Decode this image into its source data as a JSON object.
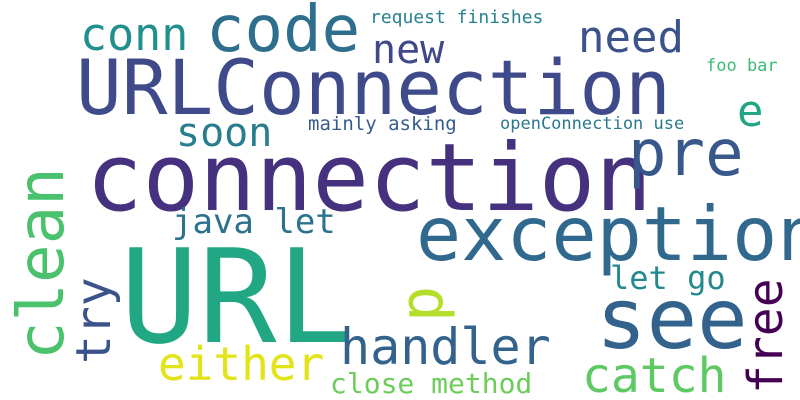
{
  "words": [
    {
      "id": "url",
      "text": "URL",
      "color": "#22a785"
    },
    {
      "id": "connection",
      "text": "connection",
      "color": "#46317e"
    },
    {
      "id": "urlconnection",
      "text": "URLConnection",
      "color": "#3e4a89"
    },
    {
      "id": "exception",
      "text": "exception",
      "color": "#30688e"
    },
    {
      "id": "see",
      "text": "see",
      "color": "#33638d"
    },
    {
      "id": "clean",
      "text": "clean",
      "color": "#4ac16d"
    },
    {
      "id": "code",
      "text": "code",
      "color": "#2e6f8e"
    },
    {
      "id": "pre",
      "text": "pre",
      "color": "#38588c"
    },
    {
      "id": "handler",
      "text": "handler",
      "color": "#33628d"
    },
    {
      "id": "catch",
      "text": "catch",
      "color": "#5ec962"
    },
    {
      "id": "conn",
      "text": "conn",
      "color": "#218f8d"
    },
    {
      "id": "need",
      "text": "need",
      "color": "#3b528b"
    },
    {
      "id": "new",
      "text": "new",
      "color": "#3f4889"
    },
    {
      "id": "either",
      "text": "either",
      "color": "#e2e418"
    },
    {
      "id": "soon",
      "text": "soon",
      "color": "#287d8e"
    },
    {
      "id": "java-let",
      "text": "java let",
      "color": "#2c728e"
    },
    {
      "id": "try",
      "text": "try",
      "color": "#3b528b"
    },
    {
      "id": "free",
      "text": "free",
      "color": "#440154"
    },
    {
      "id": "p",
      "text": "p",
      "color": "#b5de2b"
    },
    {
      "id": "e",
      "text": "e",
      "color": "#21a685"
    },
    {
      "id": "let-go",
      "text": "let go",
      "color": "#23898e"
    },
    {
      "id": "close-method",
      "text": "close method",
      "color": "#6ccd5a"
    },
    {
      "id": "request-finishes",
      "text": "request finishes",
      "color": "#26828e"
    },
    {
      "id": "mainly-asking",
      "text": "mainly asking",
      "color": "#365c8d"
    },
    {
      "id": "openconnection-use",
      "text": "openConnection use",
      "color": "#2a788e"
    },
    {
      "id": "foo-bar",
      "text": "foo bar",
      "color": "#3bbb75"
    }
  ]
}
